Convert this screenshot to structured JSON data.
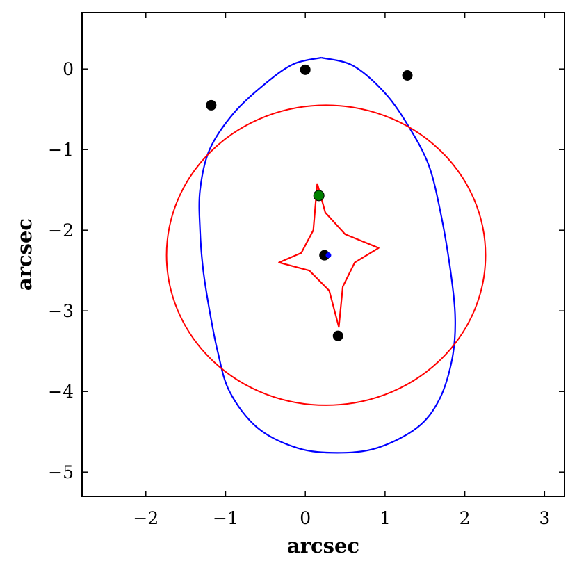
{
  "chart_data": {
    "type": "scatter",
    "xlabel": "arcsec",
    "ylabel": "arcsec",
    "xlim": [
      -2.8,
      3.25
    ],
    "ylim": [
      -5.3,
      0.7
    ],
    "xticks": [
      -2,
      -1,
      0,
      1,
      2,
      3
    ],
    "yticks": [
      0,
      -1,
      -2,
      -3,
      -4,
      -5
    ],
    "xtick_labels": [
      "−2",
      "−1",
      "0",
      "1",
      "2",
      "3"
    ],
    "ytick_labels": [
      "0",
      "−1",
      "−2",
      "−3",
      "−4",
      "−5"
    ],
    "grid": false,
    "curves": [
      {
        "kind": "critical-curve",
        "color": "#0000ff",
        "points": [
          [
            0.2,
            0.14
          ],
          [
            0.6,
            0.04
          ],
          [
            1.0,
            -0.3
          ],
          [
            1.3,
            -0.72
          ],
          [
            1.55,
            -1.2
          ],
          [
            1.7,
            -1.8
          ],
          [
            1.82,
            -2.5
          ],
          [
            1.88,
            -3.1
          ],
          [
            1.84,
            -3.6
          ],
          [
            1.68,
            -4.1
          ],
          [
            1.4,
            -4.45
          ],
          [
            0.9,
            -4.7
          ],
          [
            0.4,
            -4.76
          ],
          [
            -0.1,
            -4.7
          ],
          [
            -0.6,
            -4.45
          ],
          [
            -0.95,
            -4.0
          ],
          [
            -1.1,
            -3.5
          ],
          [
            -1.2,
            -3.0
          ],
          [
            -1.28,
            -2.5
          ],
          [
            -1.32,
            -2.0
          ],
          [
            -1.32,
            -1.5
          ],
          [
            -1.2,
            -1.0
          ],
          [
            -0.9,
            -0.55
          ],
          [
            -0.5,
            -0.18
          ],
          [
            -0.15,
            0.06
          ],
          [
            0.2,
            0.14
          ]
        ]
      },
      {
        "kind": "critical-curve",
        "color": "#ff0000",
        "ellipse": {
          "cx": 0.26,
          "cy": -2.31,
          "rx": 2.0,
          "ry": 1.86
        }
      },
      {
        "kind": "caustic",
        "color": "#ff0000",
        "points": [
          [
            0.15,
            -1.42
          ],
          [
            0.25,
            -1.78
          ],
          [
            0.5,
            -2.05
          ],
          [
            0.92,
            -2.22
          ],
          [
            0.62,
            -2.4
          ],
          [
            0.47,
            -2.7
          ],
          [
            0.42,
            -3.2
          ],
          [
            0.3,
            -2.75
          ],
          [
            0.05,
            -2.5
          ],
          [
            -0.33,
            -2.4
          ],
          [
            -0.05,
            -2.28
          ],
          [
            0.1,
            -2.0
          ],
          [
            0.15,
            -1.42
          ]
        ]
      }
    ],
    "points": [
      {
        "x": -1.18,
        "y": -0.45,
        "color": "#000000",
        "role": "image"
      },
      {
        "x": 0.0,
        "y": -0.01,
        "color": "#000000",
        "role": "image"
      },
      {
        "x": 1.28,
        "y": -0.08,
        "color": "#000000",
        "role": "image"
      },
      {
        "x": 0.41,
        "y": -3.31,
        "color": "#000000",
        "role": "image"
      },
      {
        "x": 0.24,
        "y": -2.31,
        "color": "#000000",
        "role": "lens"
      },
      {
        "x": 0.29,
        "y": -2.31,
        "color": "#0000ff",
        "role": "source-marker"
      },
      {
        "x": 0.17,
        "y": -1.57,
        "color": "#008000",
        "role": "source"
      }
    ]
  }
}
